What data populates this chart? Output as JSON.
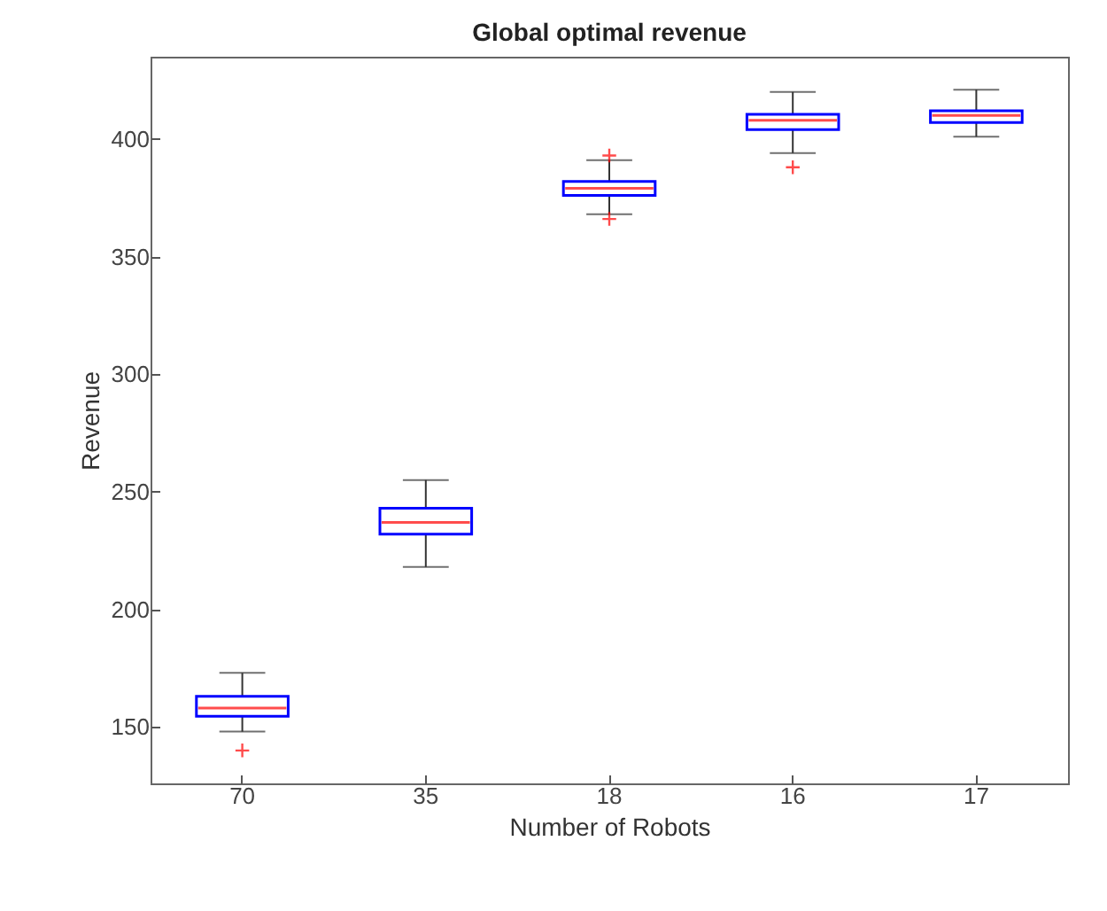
{
  "chart_data": {
    "type": "box",
    "title": "Global optimal revenue",
    "xlabel": "Number of Robots",
    "ylabel": "Revenue",
    "categories": [
      "70",
      "35",
      "18",
      "16",
      "17"
    ],
    "boxes": [
      {
        "low": 148,
        "q1": 154.5,
        "median": 158,
        "q3": 163,
        "high": 173,
        "outliers": [
          140
        ]
      },
      {
        "low": 218,
        "q1": 232,
        "median": 237,
        "q3": 243,
        "high": 255
      },
      {
        "low": 368,
        "q1": 376,
        "median": 379,
        "q3": 382,
        "high": 391,
        "outliers": [
          393,
          366
        ]
      },
      {
        "low": 394,
        "q1": 404,
        "median": 408,
        "q3": 410.5,
        "high": 420,
        "outliers": [
          388
        ]
      },
      {
        "low": 401,
        "q1": 407,
        "median": 410,
        "q3": 412,
        "high": 421
      }
    ],
    "color": "#0000ff",
    "ylim": [
      126,
      435
    ],
    "yticks": [
      150,
      200,
      250,
      300,
      350,
      400
    ],
    "grid": false
  }
}
